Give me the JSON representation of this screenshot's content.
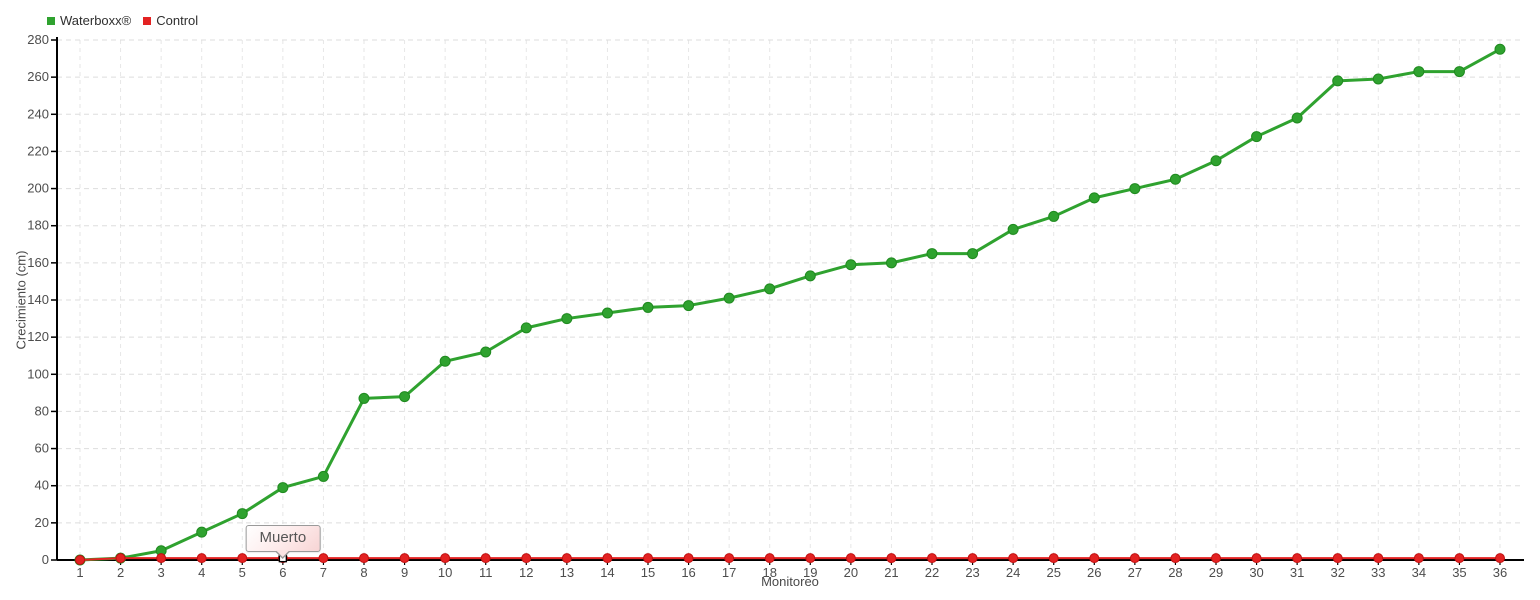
{
  "chart_data": {
    "type": "line",
    "xlabel": "Monitoreo",
    "ylabel": "Crecimiento (cm)",
    "ylim": [
      0,
      280
    ],
    "ytick_step": 20,
    "grid": true,
    "legend_position": "top-left",
    "x": [
      1,
      2,
      3,
      4,
      5,
      6,
      7,
      8,
      9,
      10,
      11,
      12,
      13,
      14,
      15,
      16,
      17,
      18,
      19,
      20,
      21,
      22,
      23,
      24,
      25,
      26,
      27,
      28,
      29,
      30,
      31,
      32,
      33,
      34,
      35,
      36
    ],
    "series": [
      {
        "name": "Waterboxx®",
        "color": "#2FA22F",
        "marker_stroke": "#1F8A1F",
        "line_width": 3,
        "marker_radius": 5,
        "values": [
          0,
          1,
          5,
          15,
          25,
          39,
          45,
          87,
          88,
          107,
          112,
          125,
          130,
          133,
          136,
          137,
          141,
          146,
          153,
          159,
          160,
          165,
          165,
          178,
          185,
          195,
          200,
          205,
          215,
          228,
          238,
          258,
          259,
          263,
          263,
          275
        ]
      },
      {
        "name": "Control",
        "color": "#E32222",
        "marker_stroke": "#C01010",
        "line_width": 2,
        "marker_radius": 4.5,
        "values": [
          0,
          1,
          1,
          1,
          1,
          1,
          1,
          1,
          1,
          1,
          1,
          1,
          1,
          1,
          1,
          1,
          1,
          1,
          1,
          1,
          1,
          1,
          1,
          1,
          1,
          1,
          1,
          1,
          1,
          1,
          1,
          1,
          1,
          1,
          1,
          1
        ]
      }
    ],
    "annotation": {
      "text": "Muerto",
      "series": "Control",
      "x": 6
    }
  },
  "legend": {
    "items": [
      {
        "label": "Waterboxx®",
        "color": "#2FA22F"
      },
      {
        "label": "Control",
        "color": "#E32222"
      }
    ]
  },
  "style_colors": {
    "h_gridline": "#dddddd",
    "v_gridline": "#e6e6e6",
    "axis": "#000000",
    "tick_label": "#4d4d4d"
  }
}
